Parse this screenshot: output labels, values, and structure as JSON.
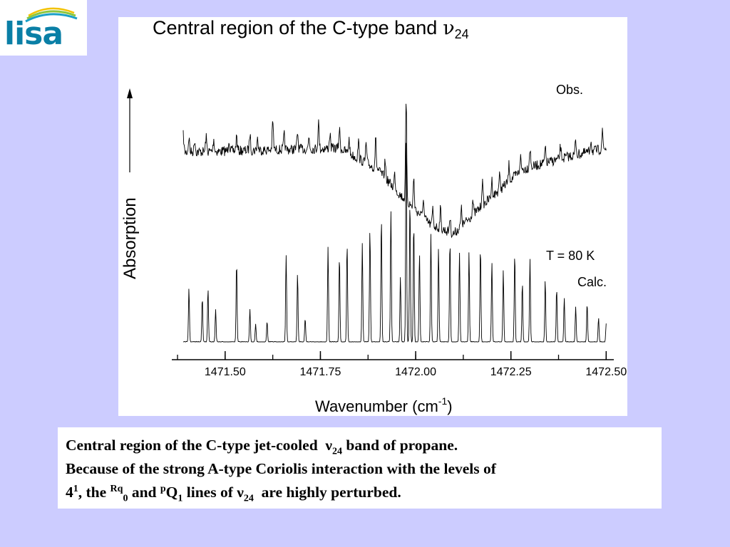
{
  "logo": {
    "text": "lisa",
    "colors": {
      "letters": "#0a7fa6",
      "arc_blue": "#1aa0c8",
      "arc_green": "#8cc63f",
      "arc_yellow": "#f2c200"
    }
  },
  "caption": {
    "line1_a": "Central region of the C-type jet-cooled",
    "line1_nu": "ν",
    "line1_sub": "24",
    "line1_b": "band of propane.",
    "line2": "Because of  the strong A-type Coriolis interaction with the levels of",
    "line3_4": "4",
    "line3_sup1": "1",
    "line3_a": ", the",
    "line3_rq": "Rq",
    "line3_sub0": "0",
    "line3_and": "and",
    "line3_p": "p",
    "line3_Q": "Q",
    "line3_sub1": "1",
    "line3_b": "lines of",
    "line3_nu": "ν",
    "line3_sub24": "24",
    "line3_c": "are highly perturbed."
  },
  "chart_data": {
    "type": "line",
    "title": "Central region of the C-type band",
    "title_symbol": "ν",
    "title_subscript": "24",
    "xlabel": "Wavenumber (cm",
    "xlabel_sup": "-1",
    "xlabel_end": ")",
    "ylabel": "Absorption",
    "xlim": [
      1471.36,
      1472.52
    ],
    "ylim": [
      0,
      1
    ],
    "x_ticks": [
      1471.5,
      1471.75,
      1472.0,
      1472.25,
      1472.5
    ],
    "x_tick_labels": [
      "1471.50",
      "1471.75",
      "1472.00",
      "1472.25",
      "1472.50"
    ],
    "annotations": [
      {
        "text": "Obs."
      },
      {
        "text": "T = 80 K"
      },
      {
        "text": "Calc."
      }
    ],
    "series": [
      {
        "name": "Obs.",
        "style": "noisy-absorption",
        "baseline": [
          [
            1471.36,
            0.72
          ],
          [
            1471.8,
            0.73
          ],
          [
            1471.9,
            0.68
          ],
          [
            1471.96,
            0.62
          ],
          [
            1472.04,
            0.55
          ],
          [
            1472.1,
            0.53
          ],
          [
            1472.18,
            0.6
          ],
          [
            1472.28,
            0.68
          ],
          [
            1472.4,
            0.71
          ],
          [
            1472.5,
            0.73
          ]
        ],
        "peaks": [
          [
            1471.39,
            0.07
          ],
          [
            1471.405,
            0.06
          ],
          [
            1471.42,
            0.05
          ],
          [
            1471.45,
            0.06
          ],
          [
            1471.47,
            0.05
          ],
          [
            1471.51,
            0.05
          ],
          [
            1471.53,
            0.06
          ],
          [
            1471.565,
            0.07
          ],
          [
            1471.585,
            0.05
          ],
          [
            1471.625,
            0.12
          ],
          [
            1471.655,
            0.06
          ],
          [
            1471.69,
            0.07
          ],
          [
            1471.72,
            0.05
          ],
          [
            1471.745,
            0.11
          ],
          [
            1471.775,
            0.06
          ],
          [
            1471.8,
            0.08
          ],
          [
            1471.825,
            0.06
          ],
          [
            1471.85,
            0.07
          ],
          [
            1471.87,
            0.08
          ],
          [
            1471.895,
            0.12
          ],
          [
            1471.92,
            0.07
          ],
          [
            1471.945,
            0.06
          ],
          [
            1471.975,
            0.4
          ],
          [
            1471.995,
            0.12
          ],
          [
            1472.02,
            0.08
          ],
          [
            1472.045,
            0.07
          ],
          [
            1472.065,
            0.08
          ],
          [
            1472.09,
            0.06
          ],
          [
            1472.12,
            0.07
          ],
          [
            1472.15,
            0.06
          ],
          [
            1472.175,
            0.1
          ],
          [
            1472.2,
            0.07
          ],
          [
            1472.22,
            0.06
          ],
          [
            1472.245,
            0.07
          ],
          [
            1472.275,
            0.06
          ],
          [
            1472.3,
            0.08
          ],
          [
            1472.34,
            0.06
          ],
          [
            1472.38,
            0.05
          ],
          [
            1472.42,
            0.06
          ],
          [
            1472.46,
            0.05
          ],
          [
            1472.49,
            0.07
          ]
        ]
      },
      {
        "name": "Calc.",
        "style": "line-spectrum",
        "baseline": 0.0,
        "peaks": [
          [
            1471.405,
            0.18
          ],
          [
            1471.44,
            0.15
          ],
          [
            1471.455,
            0.18
          ],
          [
            1471.475,
            0.11
          ],
          [
            1471.53,
            0.27
          ],
          [
            1471.565,
            0.11
          ],
          [
            1471.58,
            0.06
          ],
          [
            1471.61,
            0.07
          ],
          [
            1471.66,
            0.29
          ],
          [
            1471.69,
            0.23
          ],
          [
            1471.71,
            0.08
          ],
          [
            1471.77,
            0.32
          ],
          [
            1471.8,
            0.29
          ],
          [
            1471.82,
            0.33
          ],
          [
            1471.86,
            0.33
          ],
          [
            1471.88,
            0.38
          ],
          [
            1471.91,
            0.42
          ],
          [
            1471.935,
            0.44
          ],
          [
            1471.96,
            0.22
          ],
          [
            1471.975,
            0.7
          ],
          [
            1471.985,
            0.48
          ],
          [
            1471.995,
            0.4
          ],
          [
            1472.01,
            0.3
          ],
          [
            1472.04,
            0.36
          ],
          [
            1472.06,
            0.32
          ],
          [
            1472.09,
            0.34
          ],
          [
            1472.115,
            0.3
          ],
          [
            1472.14,
            0.3
          ],
          [
            1472.17,
            0.32
          ],
          [
            1472.2,
            0.27
          ],
          [
            1472.23,
            0.24
          ],
          [
            1472.26,
            0.3
          ],
          [
            1472.28,
            0.2
          ],
          [
            1472.3,
            0.28
          ],
          [
            1472.34,
            0.21
          ],
          [
            1472.37,
            0.18
          ],
          [
            1472.39,
            0.15
          ],
          [
            1472.42,
            0.12
          ],
          [
            1472.45,
            0.13
          ],
          [
            1472.48,
            0.08
          ],
          [
            1472.5,
            0.06
          ]
        ]
      }
    ]
  }
}
